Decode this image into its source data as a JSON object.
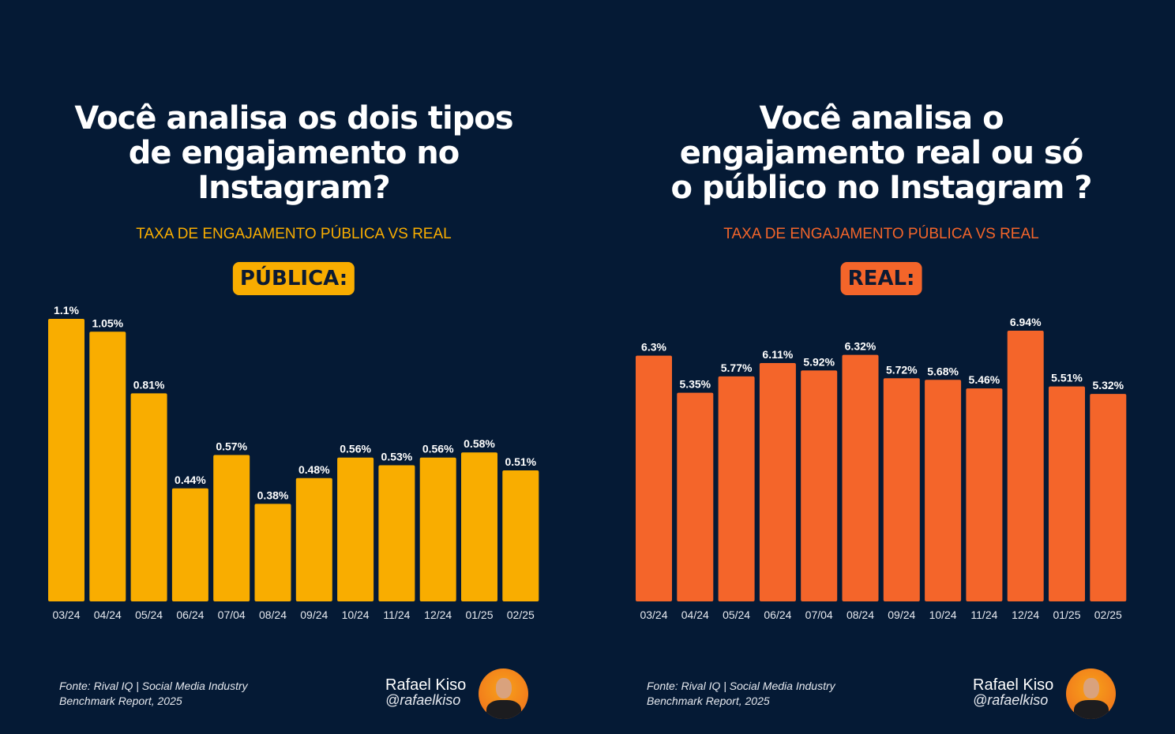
{
  "panels": [
    {
      "title": "Você analisa os dois tipos\nde engajamento no\nInstagram?",
      "subtitle": "TAXA DE ENGAJAMENTO PÚBLICA VS REAL",
      "badge": "PÚBLICA:",
      "accent": "#f9ad00",
      "source": "Fonte: Rival IQ | Social Media Industry",
      "source2": "Benchmark Report, 2025",
      "author": "Rafael Kiso",
      "handle": "@rafaelkiso"
    },
    {
      "title": "Você analisa o\nengajamento real ou só\no público no Instagram ?",
      "subtitle": "TAXA DE ENGAJAMENTO PÚBLICA VS REAL",
      "badge": "REAL:",
      "accent": "#f4652a",
      "source": "Fonte: Rival IQ | Social Media Industry",
      "source2": "Benchmark Report, 2025",
      "author": "Rafael Kiso",
      "handle": "@rafaelkiso"
    }
  ],
  "chart_data": [
    {
      "type": "bar",
      "title": "PÚBLICA:",
      "categories": [
        "03/24",
        "04/24",
        "05/24",
        "06/24",
        "07/04",
        "08/24",
        "09/24",
        "10/24",
        "11/24",
        "12/24",
        "01/25",
        "02/25"
      ],
      "values": [
        1.1,
        1.05,
        0.81,
        0.44,
        0.57,
        0.38,
        0.48,
        0.56,
        0.53,
        0.56,
        0.58,
        0.51
      ],
      "labels": [
        "1.1%",
        "1.05%",
        "0.81%",
        "0.44%",
        "0.57%",
        "0.38%",
        "0.48%",
        "0.56%",
        "0.53%",
        "0.56%",
        "0.58%",
        "0.51%"
      ],
      "ylim": [
        0,
        1.1
      ],
      "color": "#f9ad00",
      "grid": false
    },
    {
      "type": "bar",
      "title": "REAL:",
      "categories": [
        "03/24",
        "04/24",
        "05/24",
        "06/24",
        "07/04",
        "08/24",
        "09/24",
        "10/24",
        "11/24",
        "12/24",
        "01/25",
        "02/25"
      ],
      "values": [
        6.3,
        5.35,
        5.77,
        6.11,
        5.92,
        6.32,
        5.72,
        5.68,
        5.46,
        6.94,
        5.51,
        5.32
      ],
      "labels": [
        "6.3%",
        "5.35%",
        "5.77%",
        "6.11%",
        "5.92%",
        "6.32%",
        "5.72%",
        "5.68%",
        "5.46%",
        "6.94%",
        "5.51%",
        "5.32%"
      ],
      "ylim": [
        0,
        6.94
      ],
      "color": "#f4652a",
      "grid": false
    }
  ]
}
